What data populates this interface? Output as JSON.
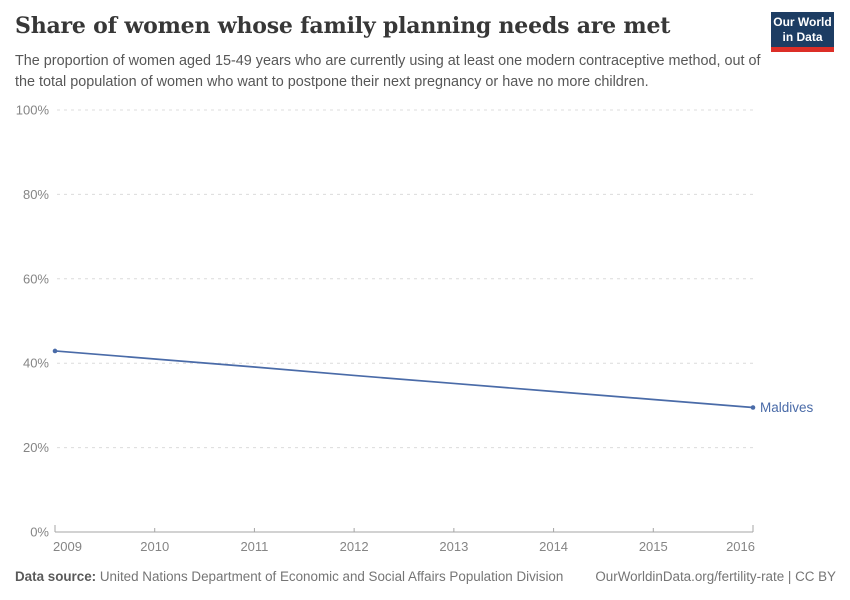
{
  "header": {
    "title": "Share of women whose family planning needs are met",
    "subtitle": "The proportion of women aged 15-49 years who are currently using at least one modern contraceptive method, out of the total population of women who want to postpone their next pregnancy or have no more children.",
    "logo": {
      "line1": "Our World",
      "line2": "in Data",
      "bg_color": "#1d3d63",
      "stripe_color": "#dc2e27"
    }
  },
  "chart_data": {
    "type": "line",
    "title": "Share of women whose family planning needs are met",
    "x": [
      2009,
      2010,
      2011,
      2012,
      2013,
      2014,
      2015,
      2016
    ],
    "series": [
      {
        "name": "Maldives",
        "values": [
          42.9,
          41.0,
          39.1,
          37.1,
          35.2,
          33.3,
          31.4,
          29.5
        ],
        "color": "#4a6ba8"
      }
    ],
    "xlabel": "",
    "ylabel": "",
    "ylim": [
      0,
      100
    ],
    "y_ticks": [
      0,
      20,
      40,
      60,
      80,
      100
    ],
    "y_tick_suffix": "%",
    "x_ticks": [
      2009,
      2010,
      2011,
      2012,
      2013,
      2014,
      2015,
      2016
    ],
    "grid": "horizontal-dashed",
    "grid_color": "#dcdcdc",
    "axis_color": "#a5a5a5",
    "legend": "end-of-line-label"
  },
  "footer": {
    "source_label": "Data source:",
    "source_text": "United Nations Department of Economic and Social Affairs Population Division",
    "link_text": "OurWorldinData.org/fertility-rate | CC BY"
  }
}
